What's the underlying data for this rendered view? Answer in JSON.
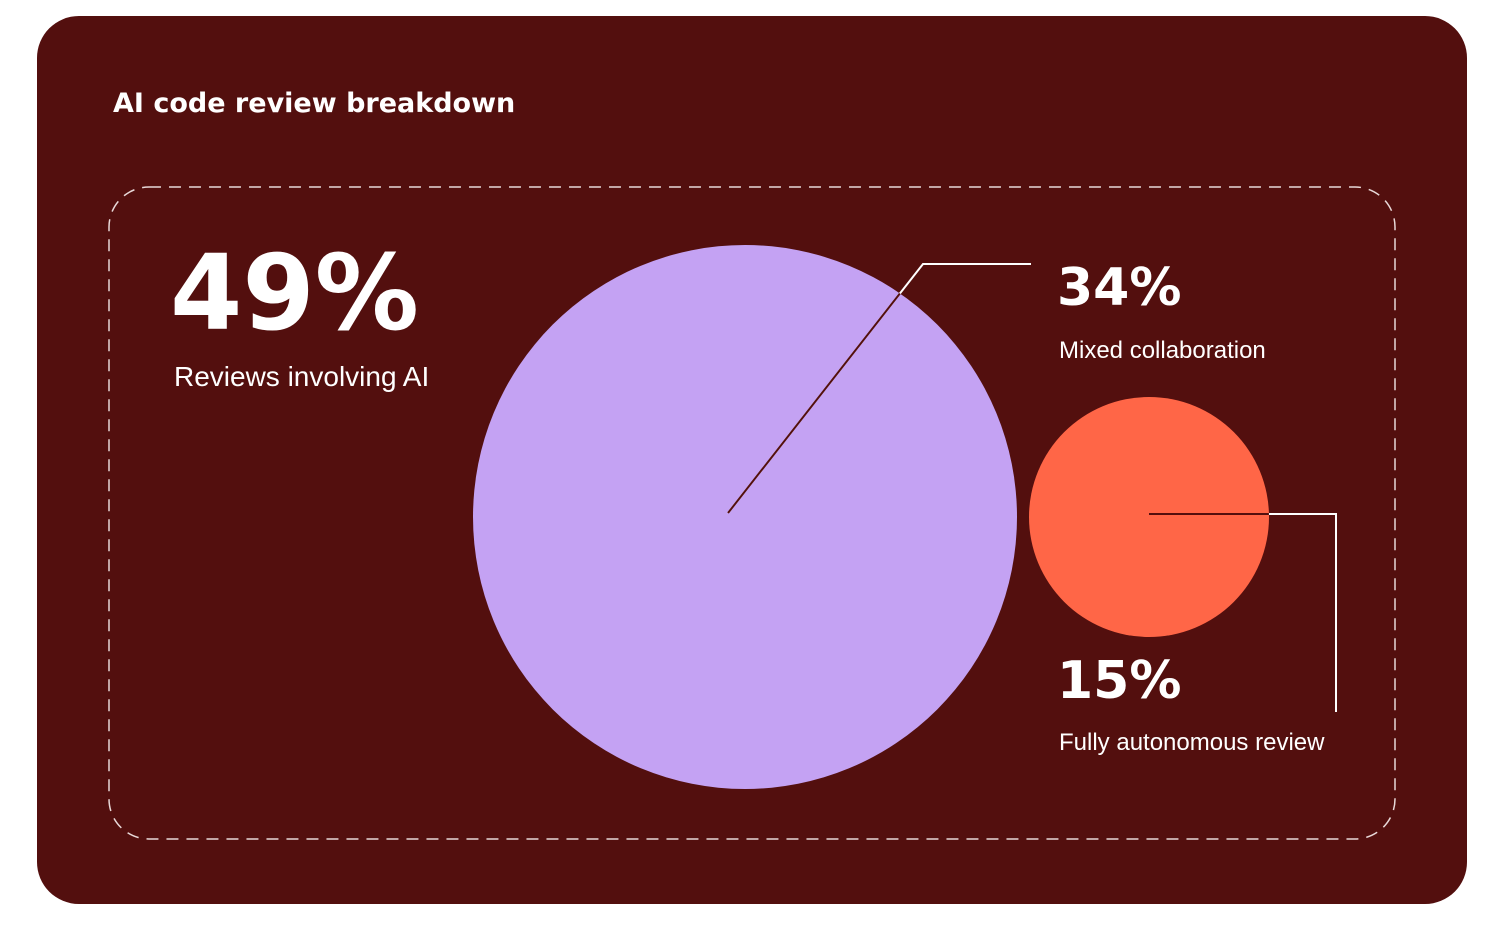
{
  "chart_data": {
    "type": "bubble",
    "title": "AI code review breakdown",
    "total": {
      "value": 49,
      "value_label": "49%",
      "label": "Reviews involving AI"
    },
    "categories": [
      "Mixed collaboration",
      "Fully autonomous review"
    ],
    "values": [
      34,
      15
    ],
    "value_labels": [
      "34%",
      "15%"
    ],
    "colors": [
      "#c4a2f3",
      "#ff6647"
    ]
  }
}
